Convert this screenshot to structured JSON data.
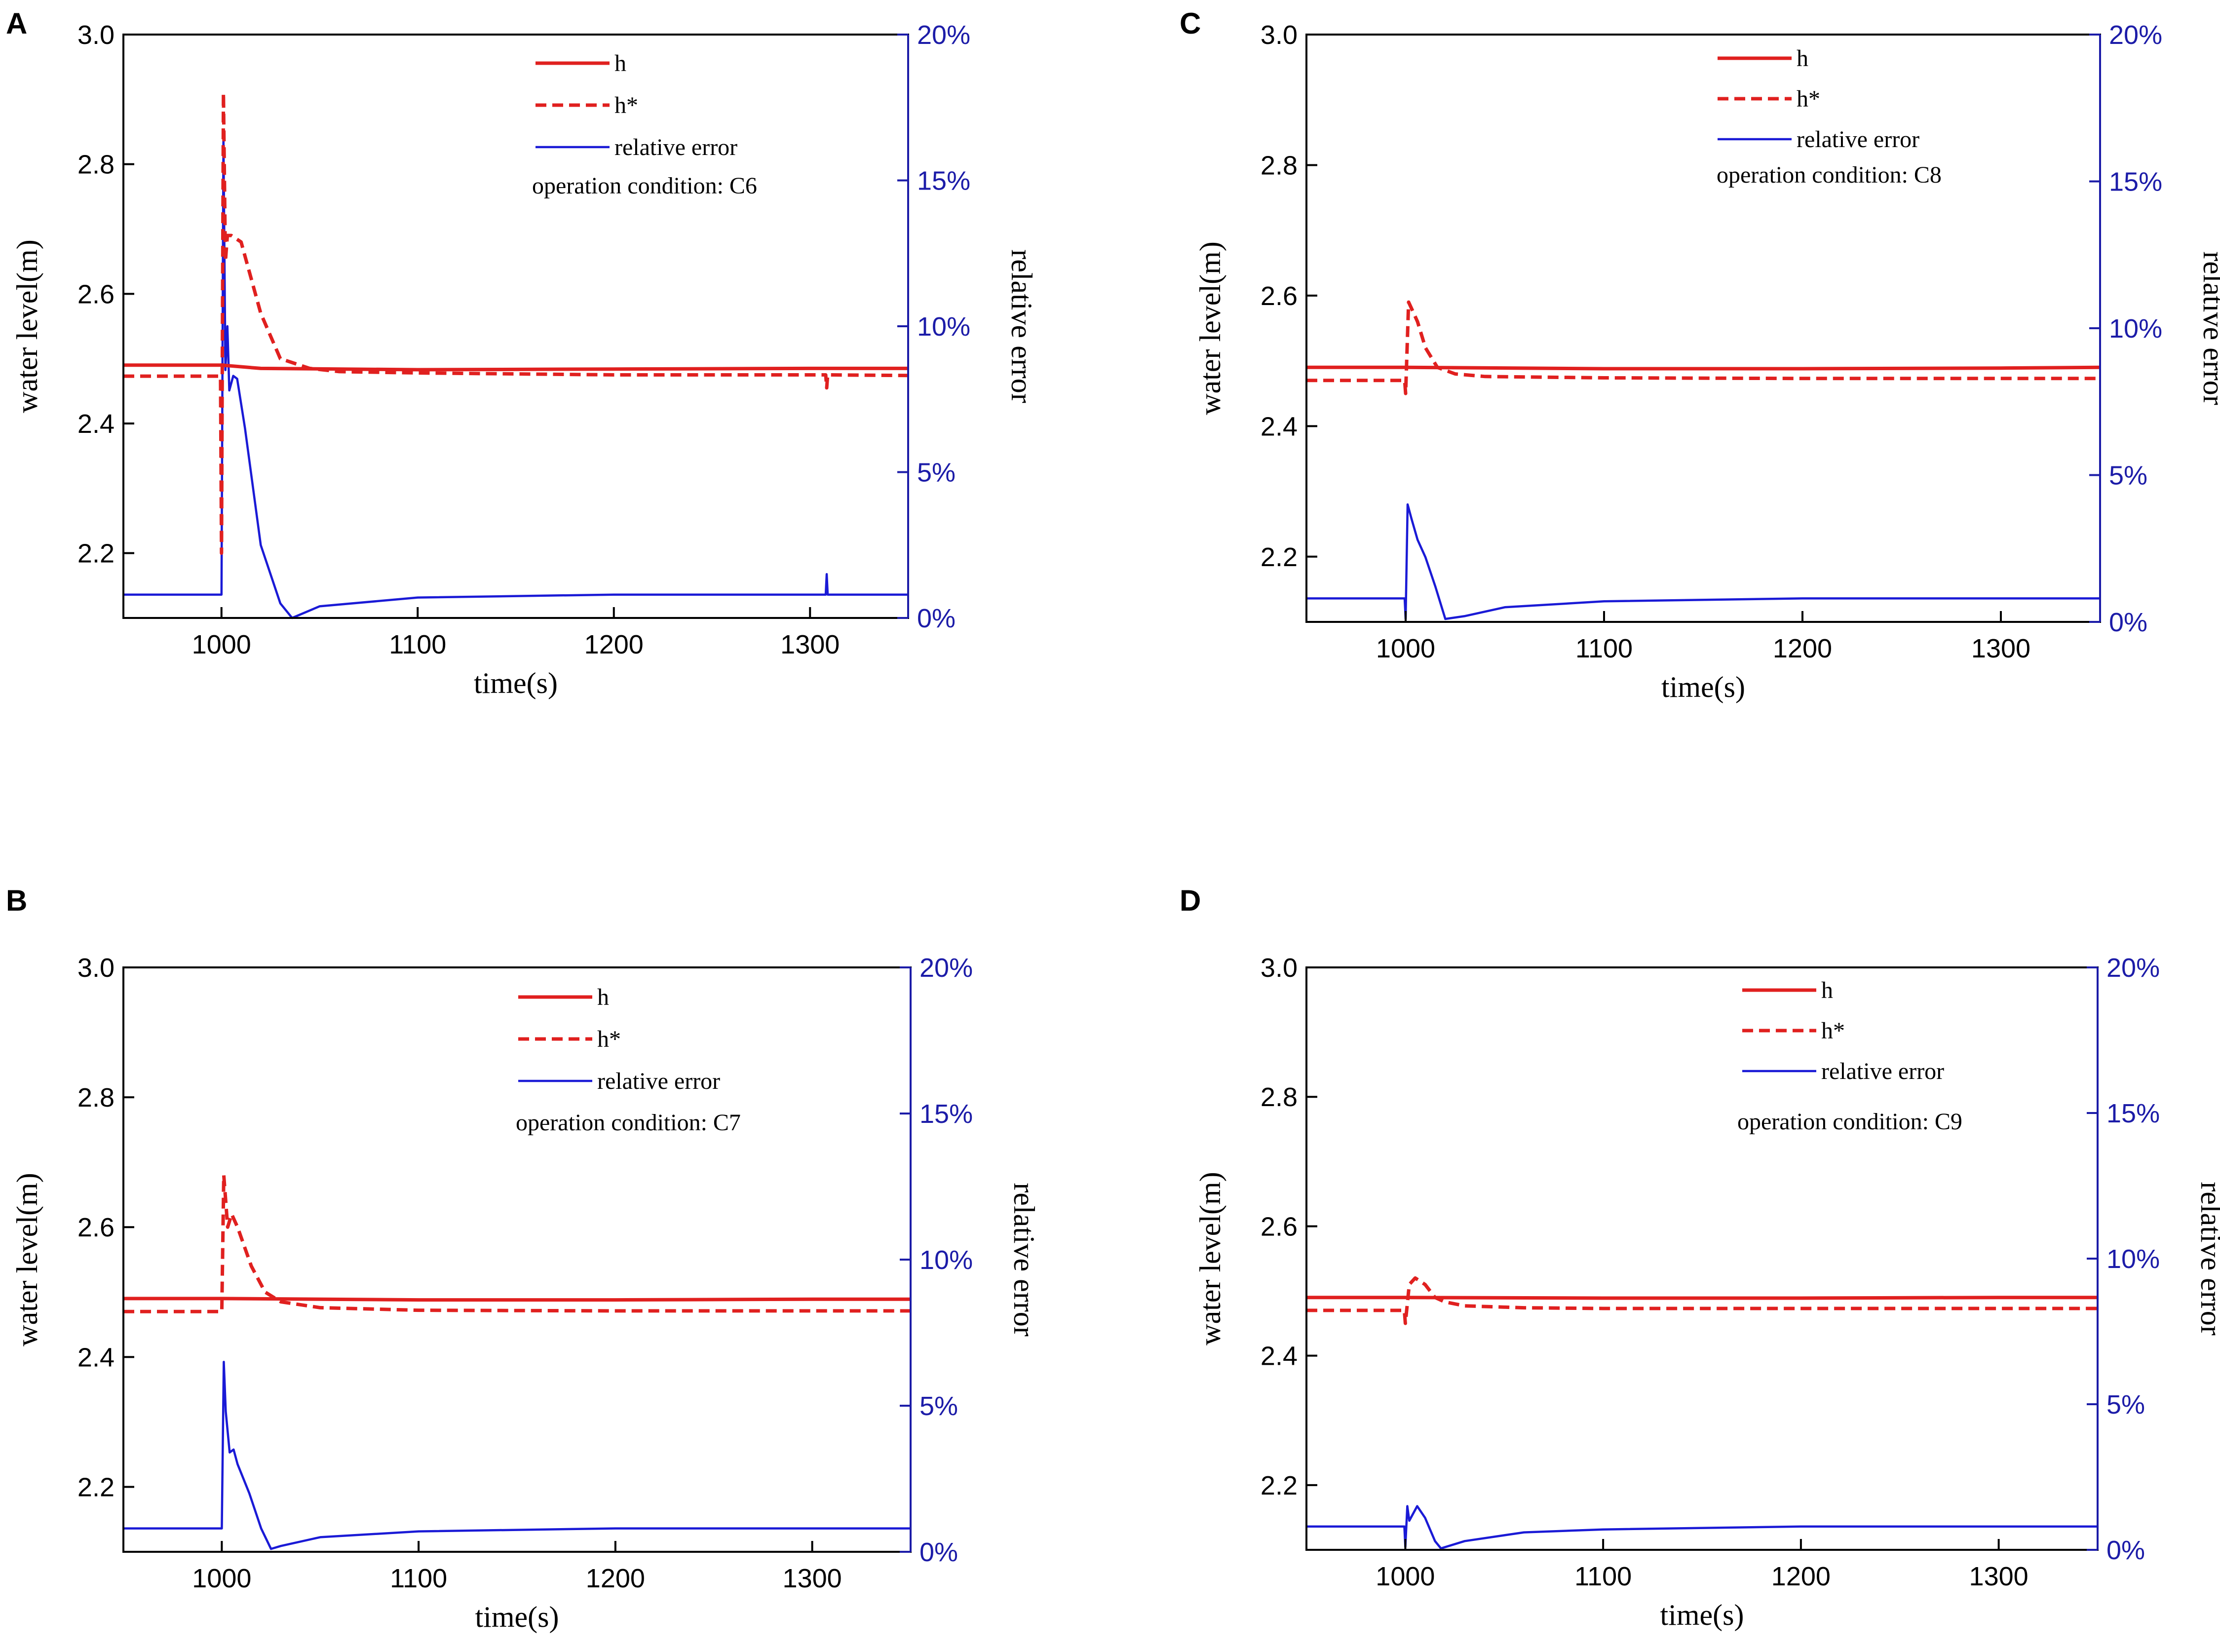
{
  "colors": {
    "h": "#e0201f",
    "h_star": "#e0201f",
    "relative_error": "#1a1ad6",
    "right_axis": "#1c1ca8"
  },
  "shared_axes": {
    "xlabel": "time(s)",
    "ylabel_left": "water level(m)",
    "ylabel_right": "relative error",
    "x_ticks": [
      "1000",
      "1100",
      "1200",
      "1300"
    ],
    "y_left_ticks": [
      "2.2",
      "2.4",
      "2.6",
      "2.8",
      "3.0"
    ],
    "y_right_ticks": [
      "0%",
      "5%",
      "10%",
      "15%",
      "20%"
    ],
    "legend": {
      "h": "h",
      "h_star": "h*",
      "relative_error": "relative error"
    }
  },
  "chart_data": [
    {
      "panel": "A",
      "type": "line",
      "annotation": "operation condition: C6",
      "xlim": [
        950,
        1350
      ],
      "ylim_left": [
        2.1,
        3.0
      ],
      "ylim_right": [
        0,
        20
      ],
      "xlabel": "time(s)",
      "ylabel": "water level(m)",
      "ylabel_right": "relative error",
      "series": [
        {
          "name": "h",
          "axis": "left",
          "style": "solid",
          "x": [
            950,
            1000,
            1020,
            1100,
            1200,
            1300,
            1350
          ],
          "y": [
            2.49,
            2.49,
            2.485,
            2.483,
            2.484,
            2.485,
            2.485
          ]
        },
        {
          "name": "h*",
          "axis": "left",
          "style": "dashed",
          "x": [
            950,
            999.5,
            1000,
            1001,
            1002,
            1003,
            1005,
            1010,
            1020,
            1030,
            1045,
            1060,
            1100,
            1200,
            1308,
            1308.5,
            1309,
            1350
          ],
          "y": [
            2.473,
            2.473,
            2.2,
            2.91,
            2.65,
            2.69,
            2.69,
            2.68,
            2.57,
            2.5,
            2.485,
            2.48,
            2.478,
            2.475,
            2.475,
            2.455,
            2.475,
            2.474
          ]
        },
        {
          "name": "relative error",
          "axis": "right",
          "style": "solid",
          "x": [
            950,
            999.5,
            1000,
            1001,
            1002,
            1003,
            1004,
            1006,
            1008,
            1012,
            1020,
            1030,
            1036,
            1050,
            1100,
            1200,
            1308,
            1308.5,
            1309,
            1350
          ],
          "y": [
            0.8,
            0.8,
            0.8,
            16.5,
            8.5,
            10.0,
            7.8,
            8.3,
            8.2,
            6.5,
            2.5,
            0.5,
            0.0,
            0.4,
            0.7,
            0.8,
            0.8,
            1.5,
            0.8,
            0.8
          ]
        }
      ]
    },
    {
      "panel": "B",
      "type": "line",
      "annotation": "operation condition: C7",
      "xlim": [
        950,
        1350
      ],
      "ylim_left": [
        2.1,
        3.0
      ],
      "ylim_right": [
        0,
        20
      ],
      "xlabel": "time(s)",
      "ylabel": "water level(m)",
      "ylabel_right": "relative error",
      "series": [
        {
          "name": "h",
          "axis": "left",
          "style": "solid",
          "x": [
            950,
            1000,
            1100,
            1200,
            1300,
            1350
          ],
          "y": [
            2.49,
            2.49,
            2.488,
            2.488,
            2.489,
            2.489
          ]
        },
        {
          "name": "h*",
          "axis": "left",
          "style": "dashed",
          "x": [
            950,
            999.5,
            1000,
            1001,
            1003,
            1005,
            1008,
            1015,
            1022,
            1030,
            1050,
            1100,
            1200,
            1350
          ],
          "y": [
            2.47,
            2.47,
            2.47,
            2.68,
            2.6,
            2.62,
            2.6,
            2.54,
            2.5,
            2.485,
            2.476,
            2.472,
            2.471,
            2.471
          ]
        },
        {
          "name": "relative error",
          "axis": "right",
          "style": "solid",
          "x": [
            950,
            999.5,
            1000,
            1001,
            1002,
            1004,
            1006,
            1008,
            1014,
            1020,
            1025,
            1030,
            1050,
            1100,
            1200,
            1350
          ],
          "y": [
            0.8,
            0.8,
            0.8,
            6.5,
            4.8,
            3.4,
            3.5,
            3.0,
            2.0,
            0.8,
            0.1,
            0.2,
            0.5,
            0.7,
            0.8,
            0.8
          ]
        }
      ]
    },
    {
      "panel": "C",
      "type": "line",
      "annotation": "operation condition: C8",
      "xlim": [
        950,
        1350
      ],
      "ylim_left": [
        2.1,
        3.0
      ],
      "ylim_right": [
        0,
        20
      ],
      "xlabel": "time(s)",
      "ylabel": "water level(m)",
      "ylabel_right": "relative error",
      "series": [
        {
          "name": "h",
          "axis": "left",
          "style": "solid",
          "x": [
            950,
            1000,
            1100,
            1200,
            1300,
            1350
          ],
          "y": [
            2.49,
            2.49,
            2.488,
            2.488,
            2.489,
            2.49
          ]
        },
        {
          "name": "h*",
          "axis": "left",
          "style": "dashed",
          "x": [
            950,
            999.5,
            1000,
            1001.5,
            1003,
            1006,
            1010,
            1016,
            1025,
            1040,
            1100,
            1200,
            1350
          ],
          "y": [
            2.47,
            2.47,
            2.45,
            2.59,
            2.58,
            2.56,
            2.52,
            2.49,
            2.48,
            2.476,
            2.474,
            2.473,
            2.473
          ]
        },
        {
          "name": "relative error",
          "axis": "right",
          "style": "solid",
          "x": [
            950,
            999.5,
            1000,
            1001,
            1003,
            1006,
            1010,
            1015,
            1020,
            1030,
            1050,
            1100,
            1200,
            1350
          ],
          "y": [
            0.8,
            0.8,
            0.1,
            4.0,
            3.5,
            2.8,
            2.2,
            1.2,
            0.1,
            0.2,
            0.5,
            0.7,
            0.8,
            0.8
          ]
        }
      ]
    },
    {
      "panel": "D",
      "type": "line",
      "annotation": "operation condition: C9",
      "xlim": [
        950,
        1350
      ],
      "ylim_left": [
        2.1,
        3.0
      ],
      "ylim_right": [
        0,
        20
      ],
      "xlabel": "time(s)",
      "ylabel": "water level(m)",
      "ylabel_right": "relative error",
      "series": [
        {
          "name": "h",
          "axis": "left",
          "style": "solid",
          "x": [
            950,
            1000,
            1100,
            1200,
            1300,
            1350
          ],
          "y": [
            2.49,
            2.49,
            2.489,
            2.489,
            2.49,
            2.49
          ]
        },
        {
          "name": "h*",
          "axis": "left",
          "style": "dashed",
          "x": [
            950,
            999.5,
            1000,
            1002,
            1005,
            1010,
            1015,
            1020,
            1030,
            1060,
            1100,
            1200,
            1350
          ],
          "y": [
            2.47,
            2.47,
            2.45,
            2.51,
            2.52,
            2.51,
            2.49,
            2.483,
            2.477,
            2.474,
            2.473,
            2.473,
            2.473
          ]
        },
        {
          "name": "relative error",
          "axis": "right",
          "style": "solid",
          "x": [
            950,
            999.5,
            1000,
            1001,
            1002,
            1006,
            1010,
            1015,
            1018,
            1030,
            1060,
            1100,
            1200,
            1350
          ],
          "y": [
            0.8,
            0.8,
            0.1,
            1.5,
            1.0,
            1.5,
            1.1,
            0.3,
            0.05,
            0.3,
            0.6,
            0.7,
            0.8,
            0.8
          ]
        }
      ]
    }
  ]
}
